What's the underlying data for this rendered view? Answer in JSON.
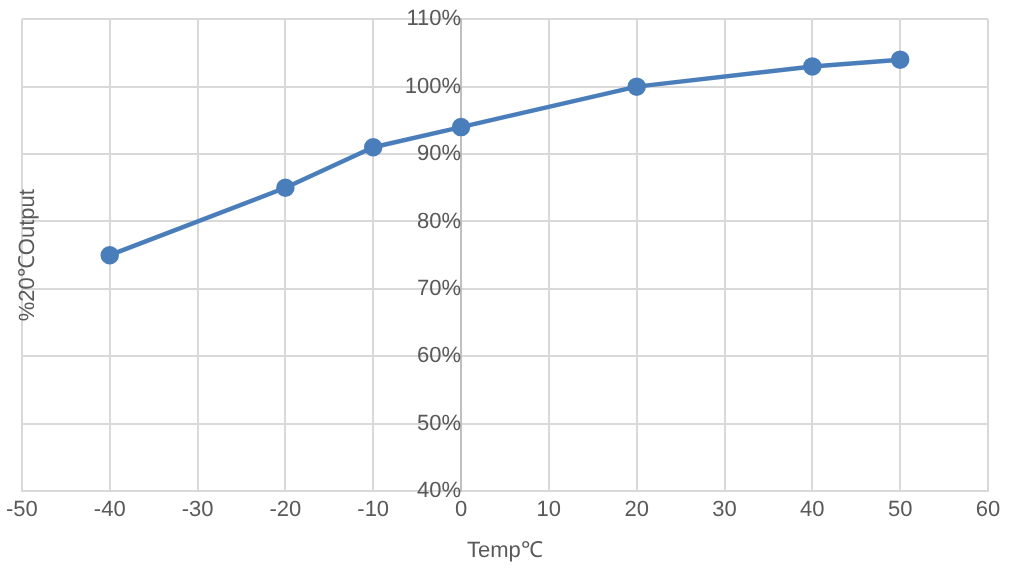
{
  "chart_data": {
    "type": "line",
    "xlabel": "Temp℃",
    "ylabel": "%20℃Output",
    "x": [
      -40,
      -20,
      -10,
      0,
      20,
      40,
      50
    ],
    "series": [
      {
        "color": "#4a7ebb",
        "values": [
          75,
          85,
          91,
          94,
          100,
          103,
          104
        ]
      }
    ],
    "xlim": [
      -50,
      60
    ],
    "xticks": [
      -50,
      -40,
      -30,
      -20,
      -10,
      0,
      10,
      20,
      30,
      40,
      50,
      60
    ],
    "ylim": [
      40,
      110
    ],
    "yticks": [
      {
        "value": 40,
        "label": "40%"
      },
      {
        "value": 50,
        "label": "50%"
      },
      {
        "value": 60,
        "label": "60%"
      },
      {
        "value": 70,
        "label": "70%"
      },
      {
        "value": 80,
        "label": "80%"
      },
      {
        "value": 90,
        "label": "90%"
      },
      {
        "value": 100,
        "label": "100%"
      },
      {
        "value": 110,
        "label": "110%"
      }
    ],
    "grid": true,
    "legend": false,
    "marker": "circle",
    "line_style": "solid"
  }
}
